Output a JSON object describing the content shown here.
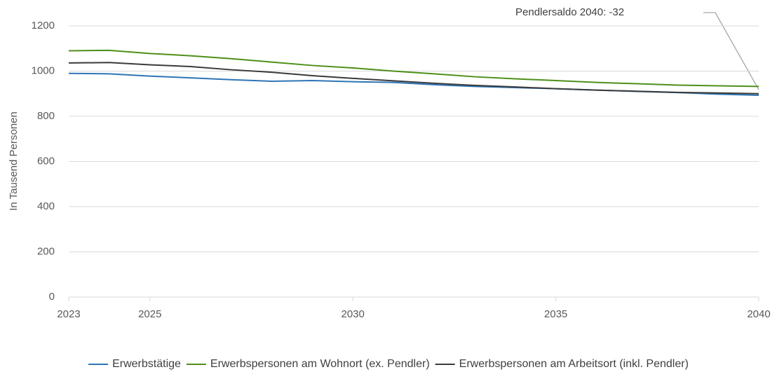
{
  "chart_data": {
    "type": "line",
    "y_label": "In Tausend Personen",
    "annotation": "Pendlersaldo 2040: -32",
    "x": [
      2023,
      2024,
      2025,
      2026,
      2027,
      2028,
      2029,
      2030,
      2031,
      2032,
      2033,
      2034,
      2035,
      2036,
      2037,
      2038,
      2039,
      2040
    ],
    "xlim": [
      2023,
      2040
    ],
    "xticks": [
      2023,
      2025,
      2030,
      2035,
      2040
    ],
    "ylim": [
      0,
      1200
    ],
    "yticks": [
      0,
      200,
      400,
      600,
      800,
      1000,
      1200
    ],
    "grid": true,
    "legend": "bottom",
    "series": [
      {
        "name": "Erwerbstätige",
        "color": "#2e75b6",
        "values": [
          990,
          988,
          978,
          970,
          962,
          955,
          958,
          953,
          950,
          940,
          932,
          927,
          922,
          916,
          910,
          905,
          898,
          893
        ]
      },
      {
        "name": "Erwerbspersonen am Wohnort (ex. Pendler)",
        "color": "#4e8f1a",
        "values": [
          1090,
          1092,
          1078,
          1068,
          1055,
          1040,
          1025,
          1014,
          1000,
          988,
          975,
          966,
          958,
          950,
          944,
          938,
          935,
          932
        ]
      },
      {
        "name": "Erwerbspersonen am Arbeitsort (inkl. Pendler)",
        "color": "#3b3b3b",
        "values": [
          1036,
          1038,
          1028,
          1020,
          1006,
          995,
          980,
          968,
          957,
          946,
          937,
          930,
          922,
          916,
          911,
          906,
          903,
          900
        ]
      }
    ]
  }
}
